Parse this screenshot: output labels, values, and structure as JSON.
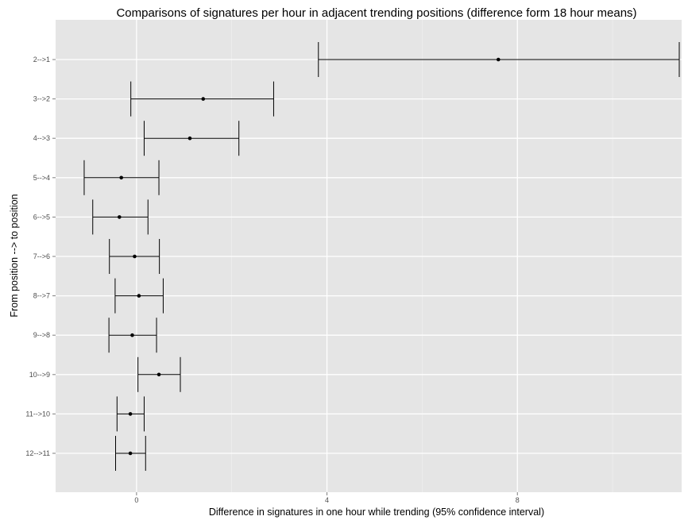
{
  "chart_data": {
    "type": "errorbar",
    "title": "Comparisons of signatures per hour in adjacent trending positions (difference form 18 hour means)",
    "xlabel": "Difference in signatures in one hour while trending (95% confidence interval)",
    "ylabel": "From position --> to position",
    "xlim": [
      -1.7,
      11.45
    ],
    "xticks": [
      "0",
      "4",
      "8"
    ],
    "xtick_values": [
      0,
      4,
      8
    ],
    "grid": true,
    "colors": {
      "panel": "#e5e5e5",
      "grid_major": "#ffffff",
      "grid_minor": "#f2f2f2",
      "marks": "#000000"
    },
    "categories": [
      "2-->1",
      "3-->2",
      "4-->3",
      "5-->4",
      "6-->5",
      "7-->6",
      "8-->7",
      "9-->8",
      "10-->9",
      "11-->10",
      "12-->11"
    ],
    "series": [
      {
        "values": [
          7.6,
          1.4,
          1.12,
          -0.32,
          -0.36,
          -0.04,
          0.05,
          -0.09,
          0.47,
          -0.13,
          -0.13
        ],
        "lower": [
          3.82,
          -0.12,
          0.16,
          -1.1,
          -0.92,
          -0.57,
          -0.45,
          -0.58,
          0.03,
          -0.41,
          -0.44
        ],
        "upper": [
          11.4,
          2.88,
          2.15,
          0.47,
          0.24,
          0.48,
          0.56,
          0.42,
          0.92,
          0.16,
          0.19
        ]
      }
    ]
  }
}
